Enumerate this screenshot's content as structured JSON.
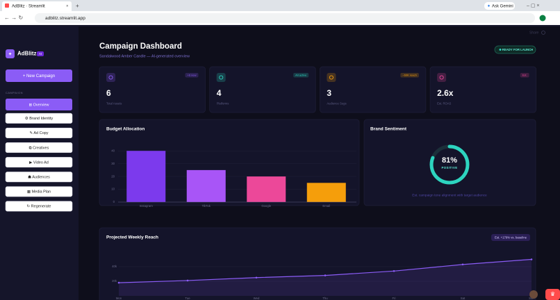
{
  "browser": {
    "tab_title": "AdBlitz · Streamlit",
    "url": "adblitz.streamlit.app",
    "assistant": "Ask Gemini"
  },
  "sidebar": {
    "logo": "AdBlitz",
    "logo_badge": "AI",
    "new_button": "+ New Campaign",
    "section": "CAMPAIGN",
    "active": 0,
    "nav": [
      "⊞ Overview",
      "⚙ Brand Identity",
      "✎ Ad Copy",
      "⧉ Creatives",
      "▶ Video Ad",
      "☗ Audiences",
      "▦ Media Plan",
      "↻ Regenerate"
    ]
  },
  "header": {
    "share": "Share",
    "title": "Campaign Dashboard",
    "subtitle": "Sandalwood Amber Candle — AI-generated overview",
    "status": "READY FOR LAUNCH"
  },
  "stats": [
    {
      "badge": "+6 new",
      "value": 6,
      "label": "Total Assets",
      "color": "#8b5cf6"
    },
    {
      "badge": "All active",
      "value": 4,
      "label": "Platforms",
      "color": "#2dd4bf"
    },
    {
      "badge": "~60K reach",
      "value": 3,
      "label": "Audience Segs",
      "color": "#f59e0b"
    },
    {
      "badge": "Est.",
      "value": "2.6x",
      "label": "Est. ROAS",
      "color": "#ec4899"
    }
  ],
  "sentiment": {
    "title": "Brand Sentiment",
    "value": 81,
    "value_label": "81%",
    "label": "POSITIVE",
    "caption": "Est. campaign tone alignment with target audience",
    "color": "#2dd4bf"
  },
  "chart_data": [
    {
      "type": "bar",
      "title": "Budget Allocation",
      "categories": [
        "Instagram",
        "TikTok",
        "Google",
        "Email"
      ],
      "values": [
        40,
        25,
        20,
        15
      ],
      "colors": [
        "#7c3aed",
        "#a855f7",
        "#ec4899",
        "#f59e0b"
      ],
      "ylim": [
        0,
        45
      ],
      "yticks": [
        0,
        10,
        20,
        30,
        40
      ],
      "grid": true
    },
    {
      "type": "line",
      "title": "Projected Weekly Reach",
      "badge": "Est. +179% vs. baseline",
      "categories": [
        "Mon",
        "Tue",
        "Wed",
        "Thu",
        "Fri",
        "Sat",
        "Sun"
      ],
      "values": [
        18000,
        21000,
        25000,
        28000,
        34000,
        43000,
        50000
      ],
      "color": "#8b5cf6",
      "ylim": [
        0,
        60000
      ],
      "yticks": [
        {
          "value": 20000,
          "label": "20k"
        },
        {
          "value": 40000,
          "label": "40k"
        }
      ],
      "grid": true
    }
  ]
}
